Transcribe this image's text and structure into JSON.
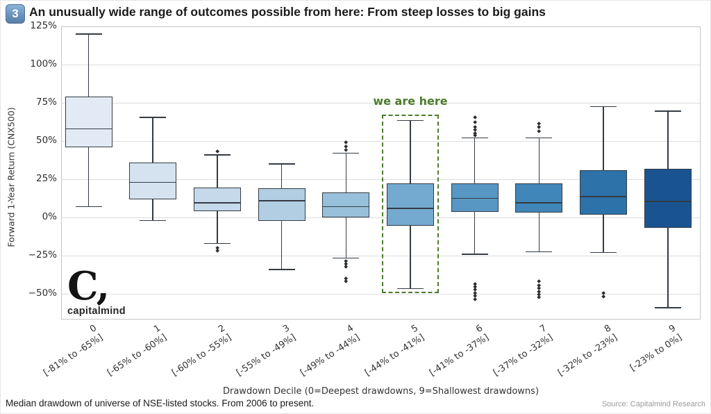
{
  "header": {
    "badge": "3",
    "title": "An unusually wide range of outcomes possible from here: From steep losses to big gains"
  },
  "logo": {
    "mark": "C,",
    "text": "capitalmind"
  },
  "footer": {
    "note": "Median drawdown of universe of NSE-listed stocks. From 2006 to present.",
    "source": "Source: Capitalmind Research"
  },
  "chart_data": {
    "type": "boxplot",
    "title": "An unusually wide range of outcomes possible from here: From steep losses to big gains",
    "xlabel": "Drawdown Decile (0=Deepest drawdowns, 9=Shallowest drawdowns)",
    "ylabel": "Forward 1-Year Return (CNX500)",
    "ylim": [
      -67,
      125
    ],
    "yticks_percent": [
      125,
      100,
      75,
      50,
      25,
      0,
      -25,
      -50
    ],
    "grid": "horizontal",
    "legend": "none",
    "annotation": {
      "text": "we are here",
      "target_decile": 5
    },
    "colors": {
      "box_fills": [
        "#e2ebf5",
        "#d5e3f0",
        "#c6d9ea",
        "#b1cee3",
        "#98c0da",
        "#74aacf",
        "#5897c4",
        "#4186b8",
        "#2d72a9",
        "#1a5490"
      ],
      "edge": "#333b44",
      "grid": "#dedede",
      "spine": "#c6c6c6",
      "outlier": "#2b2b2b",
      "annotation": "#4c7c2c"
    },
    "boxes": [
      {
        "decile": "0",
        "range": "[-81% to -65%]",
        "whisker_low": 7,
        "q1": 46,
        "median": 58,
        "q3": 79,
        "whisker_high": 120,
        "outliers_high": [],
        "outliers_low": []
      },
      {
        "decile": "1",
        "range": "[-65% to -60%]",
        "whisker_low": -2,
        "q1": 12,
        "median": 23,
        "q3": 36,
        "whisker_high": 65.5,
        "outliers_high": [],
        "outliers_low": []
      },
      {
        "decile": "2",
        "range": "[-60% to -55%]",
        "whisker_low": -17,
        "q1": 4,
        "median": 9.5,
        "q3": 19.5,
        "whisker_high": 41,
        "outliers_high": [
          43
        ],
        "outliers_low": [
          -20,
          -22
        ]
      },
      {
        "decile": "3",
        "range": "[-55% to -49%]",
        "whisker_low": -34,
        "q1": -2.5,
        "median": 11,
        "q3": 19,
        "whisker_high": 35,
        "outliers_high": [],
        "outliers_low": []
      },
      {
        "decile": "4",
        "range": "[-49% to -44%]",
        "whisker_low": -26.5,
        "q1": 0,
        "median": 7,
        "q3": 16.5,
        "whisker_high": 42,
        "outliers_high": [
          44,
          46.5,
          49
        ],
        "outliers_low": [
          -28.5,
          -30.5,
          -32.5,
          -40,
          -42
        ]
      },
      {
        "decile": "5",
        "range": "[-44% to -41%]",
        "whisker_low": -46.5,
        "q1": -5.5,
        "median": 6,
        "q3": 22.5,
        "whisker_high": 63.5,
        "outliers_high": [],
        "outliers_low": []
      },
      {
        "decile": "6",
        "range": "[-41% to -37%]",
        "whisker_low": -24,
        "q1": 3.5,
        "median": 12.5,
        "q3": 22.5,
        "whisker_high": 52,
        "outliers_high": [
          53.5,
          55,
          57,
          59,
          62,
          65.5
        ],
        "outliers_low": [
          -43.5,
          -45.5,
          -47.5,
          -49.5,
          -51.5,
          -53.5
        ]
      },
      {
        "decile": "7",
        "range": "[-37% to -32%]",
        "whisker_low": -22.5,
        "q1": 3,
        "median": 9.5,
        "q3": 22.5,
        "whisker_high": 52,
        "outliers_high": [
          56.5,
          59,
          61.5
        ],
        "outliers_low": [
          -42,
          -44.5,
          -46.5,
          -48.5,
          -50.5,
          -52.5
        ]
      },
      {
        "decile": "8",
        "range": "[-32% to -23%]",
        "whisker_low": -23,
        "q1": 2,
        "median": 13.5,
        "q3": 31,
        "whisker_high": 72.5,
        "outliers_high": [],
        "outliers_low": [
          -49.5,
          -52
        ]
      },
      {
        "decile": "9",
        "range": "[-23% to 0%]",
        "whisker_low": -59,
        "q1": -7,
        "median": 10.5,
        "q3": 32,
        "whisker_high": 69.5,
        "outliers_high": [],
        "outliers_low": []
      }
    ]
  }
}
